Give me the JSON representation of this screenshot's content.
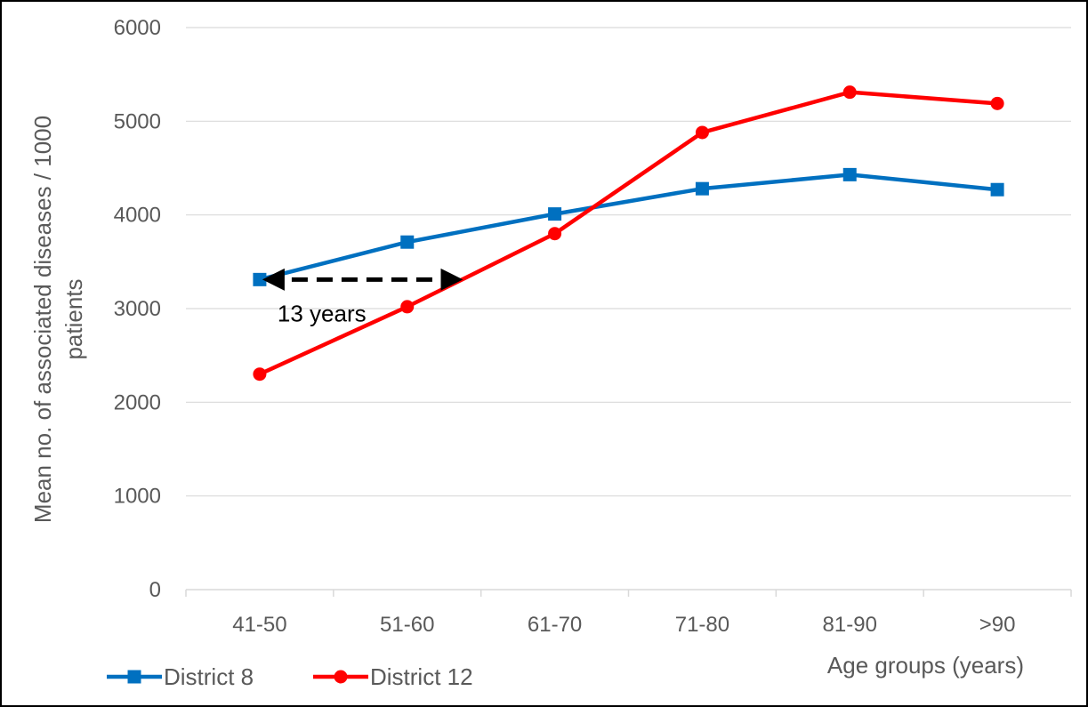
{
  "chart_data": {
    "type": "line",
    "title": "",
    "xlabel": "Age groups (years)",
    "ylabel_lines": [
      "Mean no. of associated diseases / 1000",
      "patients"
    ],
    "categories": [
      "41-50",
      "51-60",
      "61-70",
      "71-80",
      "81-90",
      ">90"
    ],
    "ylim": [
      0,
      6000
    ],
    "yticks": [
      "0",
      "1000",
      "2000",
      "3000",
      "4000",
      "5000",
      "6000"
    ],
    "grid": true,
    "legend_position": "bottom-left",
    "series": [
      {
        "name": "District 8",
        "color": "#0070C0",
        "marker": "square",
        "values": [
          3310,
          3710,
          4010,
          4280,
          4430,
          4270
        ]
      },
      {
        "name": "District 12",
        "color": "#FF0000",
        "marker": "circle",
        "values": [
          2300,
          3020,
          3800,
          4880,
          5310,
          5190
        ]
      }
    ],
    "annotation": {
      "text": "13 years",
      "style": "dashed double-headed arrow",
      "color": "#000000",
      "y_value": 3310,
      "from_category": "41-50",
      "to_value_on_series": "District 12"
    }
  }
}
